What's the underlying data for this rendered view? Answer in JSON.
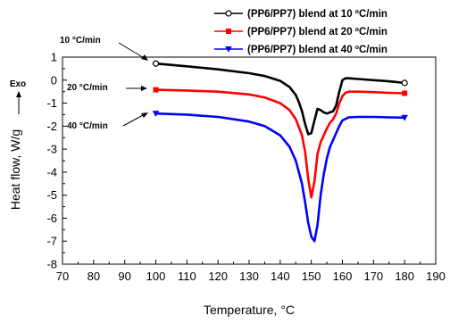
{
  "chart_data": {
    "type": "line",
    "xlabel": "Temperature, °C",
    "ylabel": "Heat flow, W/g",
    "xlim": [
      70,
      190
    ],
    "ylim": [
      -8,
      1
    ],
    "xticks": [
      70,
      80,
      90,
      100,
      110,
      120,
      130,
      140,
      150,
      160,
      170,
      180,
      190
    ],
    "yticks": [
      1,
      0,
      -1,
      -2,
      -3,
      -4,
      -5,
      -6,
      -7,
      -8
    ],
    "legend_position": "top-right",
    "exo_label": "Exo",
    "annotations": [
      "10 °C/min",
      "20 °C/min",
      "40 °C/min"
    ],
    "series": [
      {
        "name": "(PP6/PP7) blend at 10 ºC/min",
        "color": "#000000",
        "marker": "open-circle",
        "x": [
          100,
          110,
          120,
          130,
          135,
          140,
          143,
          145,
          146,
          147,
          148,
          149,
          150,
          151,
          152,
          153,
          154,
          155,
          156,
          157,
          158,
          159,
          160,
          161,
          162,
          165,
          170,
          175,
          180
        ],
        "y": [
          0.72,
          0.6,
          0.47,
          0.3,
          0.18,
          -0.03,
          -0.3,
          -0.65,
          -0.95,
          -1.35,
          -1.9,
          -2.35,
          -2.3,
          -1.75,
          -1.25,
          -1.3,
          -1.4,
          -1.45,
          -1.4,
          -1.35,
          -1.1,
          -0.5,
          0.0,
          0.08,
          0.08,
          0.05,
          0.0,
          -0.05,
          -0.12
        ]
      },
      {
        "name": "(PP6/PP7) blend at 20 ºC/min",
        "color": "#ff0000",
        "marker": "square",
        "x": [
          100,
          110,
          120,
          130,
          135,
          140,
          143,
          145,
          147,
          148,
          149,
          150,
          151,
          152,
          153,
          154,
          155,
          156,
          157,
          158,
          159,
          160,
          161,
          162,
          165,
          170,
          175,
          180
        ],
        "y": [
          -0.42,
          -0.45,
          -0.5,
          -0.62,
          -0.75,
          -1.0,
          -1.3,
          -1.7,
          -2.4,
          -3.1,
          -4.3,
          -5.1,
          -4.4,
          -3.2,
          -2.7,
          -2.4,
          -2.1,
          -1.85,
          -1.7,
          -1.45,
          -1.0,
          -0.7,
          -0.55,
          -0.5,
          -0.5,
          -0.52,
          -0.55,
          -0.57
        ]
      },
      {
        "name": "(PP6/PP7) blend at 40 ºC/min",
        "color": "#0000ff",
        "marker": "down-triangle",
        "x": [
          100,
          110,
          120,
          130,
          135,
          140,
          143,
          145,
          147,
          148,
          149,
          150,
          151,
          152,
          153,
          154,
          155,
          156,
          157,
          158,
          159,
          160,
          162,
          165,
          170,
          175,
          180
        ],
        "y": [
          -1.45,
          -1.5,
          -1.6,
          -1.8,
          -2.0,
          -2.4,
          -2.9,
          -3.5,
          -4.5,
          -5.3,
          -6.2,
          -6.8,
          -7.0,
          -6.3,
          -5.0,
          -4.1,
          -3.4,
          -2.9,
          -2.6,
          -2.3,
          -2.0,
          -1.75,
          -1.62,
          -1.6,
          -1.6,
          -1.62,
          -1.63
        ]
      }
    ]
  }
}
